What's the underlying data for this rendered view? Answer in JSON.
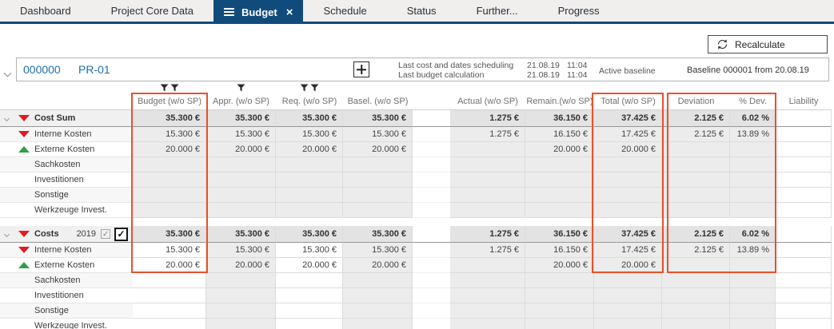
{
  "tabs": [
    {
      "label": "Dashboard",
      "active": false
    },
    {
      "label": "Project Core Data",
      "active": false
    },
    {
      "label": "Budget",
      "active": true
    },
    {
      "label": "Schedule",
      "active": false
    },
    {
      "label": "Status",
      "active": false
    },
    {
      "label": "Further...",
      "active": false
    },
    {
      "label": "Progress",
      "active": false
    }
  ],
  "toolbar": {
    "recalculate_label": "Recalculate"
  },
  "project": {
    "id": "000000",
    "name": "PR-01",
    "last_cost_label": "Last cost and dates scheduling",
    "last_budget_label": "Last budget calculation",
    "last_cost_date": "21.08.19",
    "last_cost_time": "11:04",
    "last_budget_date": "21.08.19",
    "last_budget_time": "11:04",
    "active_baseline_label": "Active baseline",
    "active_baseline_value": "Baseline 000001 from 20.08.19"
  },
  "colors": {
    "accent_navy": "#114b7b",
    "highlight_orange": "#e8502d",
    "trend_red": "#e01b24",
    "trend_green": "#2f9e44",
    "link_blue": "#1c6fad"
  },
  "table": {
    "columns": [
      {
        "key": "budget",
        "label": "Budget (w/o SP)",
        "filters": 2
      },
      {
        "key": "appr",
        "label": "Appr. (w/o SP)",
        "filters": 1
      },
      {
        "key": "req",
        "label": "Req. (w/o SP)",
        "filters": 2
      },
      {
        "key": "basel",
        "label": "Basel. (w/o SP)",
        "filters": 0
      },
      {
        "key": "actual",
        "label": "Actual (w/o SP)",
        "filters": 0
      },
      {
        "key": "remain",
        "label": "Remain.(w/o SP)",
        "filters": 0
      },
      {
        "key": "total",
        "label": "Total (w/o SP)",
        "filters": 0
      },
      {
        "key": "deviation",
        "label": "Deviation",
        "filters": 0
      },
      {
        "key": "pdev",
        "label": "% Dev.",
        "filters": 0
      },
      {
        "key": "liability",
        "label": "Liability",
        "filters": 0
      }
    ],
    "groups": [
      {
        "name": "Cost Sum",
        "type": "sum",
        "trend": "down",
        "year": "",
        "totals": {
          "budget": "35.300 €",
          "appr": "35.300 €",
          "req": "35.300 €",
          "basel": "35.300 €",
          "actual": "1.275 €",
          "remain": "36.150 €",
          "total": "37.425 €",
          "deviation": "2.125 €",
          "pdev": "6.02 %",
          "liability": ""
        },
        "rows": [
          {
            "label": "Interne Kosten",
            "trend": "down",
            "values": {
              "budget": "15.300 €",
              "appr": "15.300 €",
              "req": "15.300 €",
              "basel": "15.300 €",
              "actual": "1.275 €",
              "remain": "16.150 €",
              "total": "17.425 €",
              "deviation": "2.125 €",
              "pdev": "13.89 %",
              "liability": ""
            }
          },
          {
            "label": "Externe Kosten",
            "trend": "up",
            "values": {
              "budget": "20.000 €",
              "appr": "20.000 €",
              "req": "20.000 €",
              "basel": "20.000 €",
              "actual": "",
              "remain": "20.000 €",
              "total": "20.000 €",
              "deviation": "",
              "pdev": "",
              "liability": ""
            }
          },
          {
            "label": "Sachkosten",
            "trend": "",
            "values": {}
          },
          {
            "label": "Investitionen",
            "trend": "",
            "values": {}
          },
          {
            "label": "Sonstige",
            "trend": "",
            "values": {}
          },
          {
            "label": "Werkzeuge Invest.",
            "trend": "",
            "values": {}
          }
        ]
      },
      {
        "name": "Costs",
        "type": "year",
        "trend": "down",
        "year": "2019",
        "totals": {
          "budget": "35.300 €",
          "appr": "35.300 €",
          "req": "35.300 €",
          "basel": "35.300 €",
          "actual": "1.275 €",
          "remain": "36.150 €",
          "total": "37.425 €",
          "deviation": "2.125 €",
          "pdev": "6.02 %",
          "liability": ""
        },
        "rows": [
          {
            "label": "Interne Kosten",
            "trend": "down",
            "values": {
              "budget": "15.300 €",
              "appr": "15.300 €",
              "req": "15.300 €",
              "basel": "15.300 €",
              "actual": "1.275 €",
              "remain": "16.150 €",
              "total": "17.425 €",
              "deviation": "2.125 €",
              "pdev": "13.89 %",
              "liability": ""
            }
          },
          {
            "label": "Externe Kosten",
            "trend": "up",
            "values": {
              "budget": "20.000 €",
              "appr": "20.000 €",
              "req": "20.000 €",
              "basel": "20.000 €",
              "actual": "",
              "remain": "20.000 €",
              "total": "20.000 €",
              "deviation": "",
              "pdev": "",
              "liability": ""
            }
          },
          {
            "label": "Sachkosten",
            "trend": "",
            "values": {}
          },
          {
            "label": "Investitionen",
            "trend": "",
            "values": {}
          },
          {
            "label": "Sonstige",
            "trend": "",
            "values": {}
          },
          {
            "label": "Werkzeuge Invest.",
            "trend": "",
            "values": {}
          }
        ]
      }
    ],
    "checkmark": "✓"
  }
}
